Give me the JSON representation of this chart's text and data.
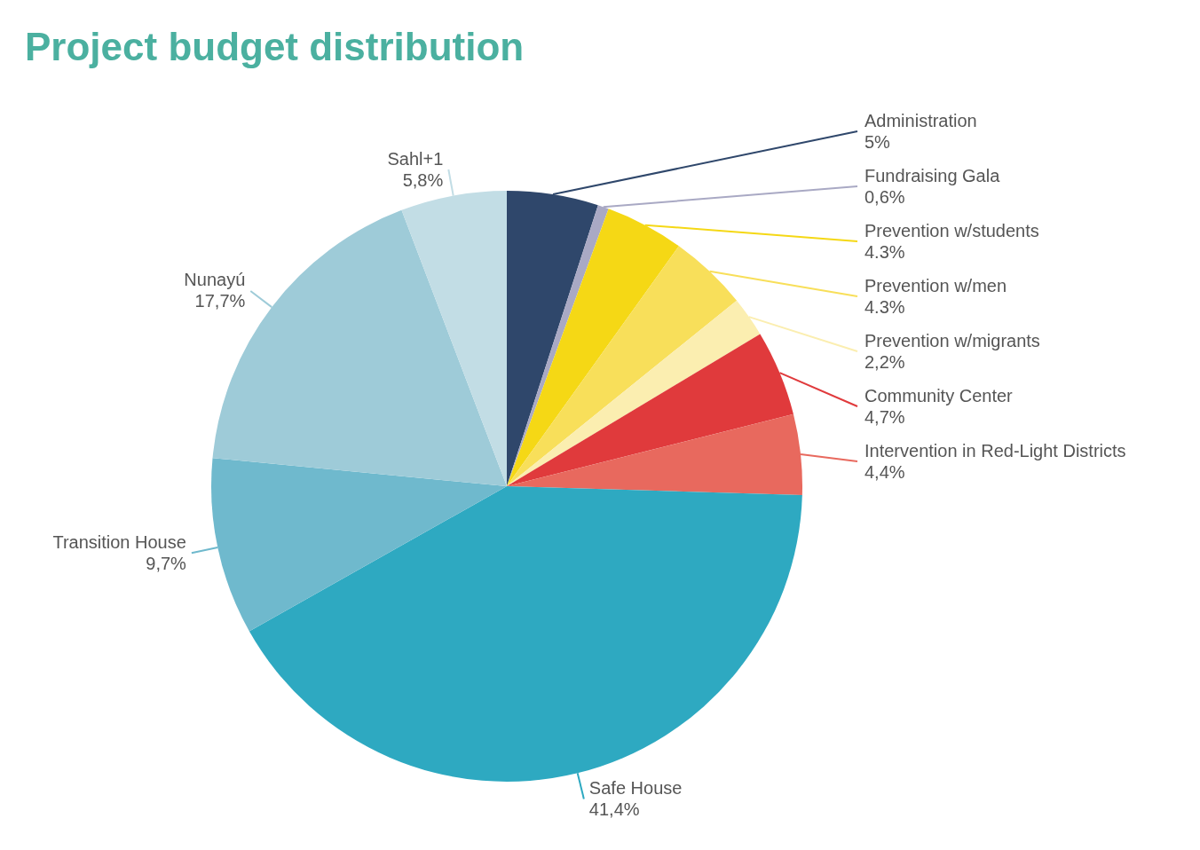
{
  "chart_data": {
    "type": "pie",
    "title": "Project budget distribution",
    "categories": [
      "Administration",
      "Fundraising Gala",
      "Prevention w/students",
      "Prevention w/men",
      "Prevention w/migrants",
      "Community Center",
      "Intervention in Red-Light Districts",
      "Safe House",
      "Transition House",
      "Nunayú",
      "Sahl+1"
    ],
    "values": [
      5,
      0.6,
      4.3,
      4.3,
      2.2,
      4.7,
      4.4,
      41.4,
      9.7,
      17.7,
      5.8
    ],
    "value_labels": [
      "5%",
      "0,6%",
      "4.3%",
      "4.3%",
      "2,2%",
      "4,7%",
      "4,4%",
      "41,4%",
      "9,7%",
      "17,7%",
      "5,8%"
    ],
    "colors": [
      "#2f476b",
      "#a9a9c4",
      "#f5d815",
      "#f8df5a",
      "#fbeeb0",
      "#e03a3c",
      "#e8695e",
      "#2ea9c1",
      "#6fb9cd",
      "#9ecbd8",
      "#c2dde5"
    ],
    "legend": false
  }
}
